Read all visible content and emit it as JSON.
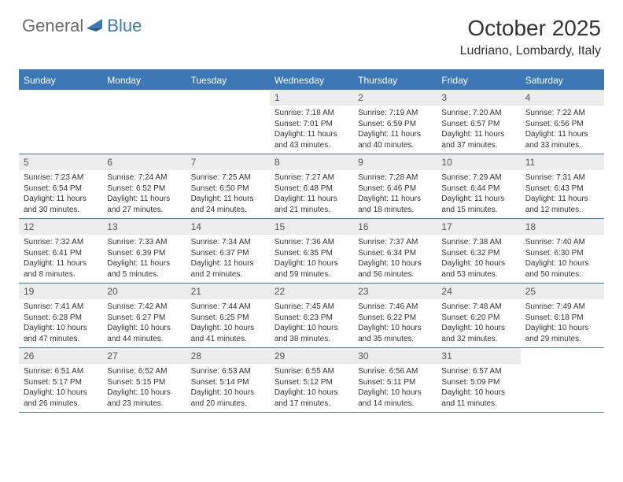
{
  "logo": {
    "text_general": "General",
    "text_blue": "Blue"
  },
  "title": "October 2025",
  "location": "Ludriano, Lombardy, Italy",
  "colors": {
    "header_bar": "#3b78b5",
    "daynum_bg": "#ececec",
    "text": "#333333",
    "logo_gray": "#6a6a6a",
    "logo_blue": "#3b78b5",
    "background": "#ffffff"
  },
  "weekdays": [
    "Sunday",
    "Monday",
    "Tuesday",
    "Wednesday",
    "Thursday",
    "Friday",
    "Saturday"
  ],
  "weeks": [
    [
      null,
      null,
      null,
      {
        "n": "1",
        "sunrise": "7:18 AM",
        "sunset": "7:01 PM",
        "day_h": 11,
        "day_m": 43
      },
      {
        "n": "2",
        "sunrise": "7:19 AM",
        "sunset": "6:59 PM",
        "day_h": 11,
        "day_m": 40
      },
      {
        "n": "3",
        "sunrise": "7:20 AM",
        "sunset": "6:57 PM",
        "day_h": 11,
        "day_m": 37
      },
      {
        "n": "4",
        "sunrise": "7:22 AM",
        "sunset": "6:56 PM",
        "day_h": 11,
        "day_m": 33
      }
    ],
    [
      {
        "n": "5",
        "sunrise": "7:23 AM",
        "sunset": "6:54 PM",
        "day_h": 11,
        "day_m": 30
      },
      {
        "n": "6",
        "sunrise": "7:24 AM",
        "sunset": "6:52 PM",
        "day_h": 11,
        "day_m": 27
      },
      {
        "n": "7",
        "sunrise": "7:25 AM",
        "sunset": "6:50 PM",
        "day_h": 11,
        "day_m": 24
      },
      {
        "n": "8",
        "sunrise": "7:27 AM",
        "sunset": "6:48 PM",
        "day_h": 11,
        "day_m": 21
      },
      {
        "n": "9",
        "sunrise": "7:28 AM",
        "sunset": "6:46 PM",
        "day_h": 11,
        "day_m": 18
      },
      {
        "n": "10",
        "sunrise": "7:29 AM",
        "sunset": "6:44 PM",
        "day_h": 11,
        "day_m": 15
      },
      {
        "n": "11",
        "sunrise": "7:31 AM",
        "sunset": "6:43 PM",
        "day_h": 11,
        "day_m": 12
      }
    ],
    [
      {
        "n": "12",
        "sunrise": "7:32 AM",
        "sunset": "6:41 PM",
        "day_h": 11,
        "day_m": 8
      },
      {
        "n": "13",
        "sunrise": "7:33 AM",
        "sunset": "6:39 PM",
        "day_h": 11,
        "day_m": 5
      },
      {
        "n": "14",
        "sunrise": "7:34 AM",
        "sunset": "6:37 PM",
        "day_h": 11,
        "day_m": 2
      },
      {
        "n": "15",
        "sunrise": "7:36 AM",
        "sunset": "6:35 PM",
        "day_h": 10,
        "day_m": 59
      },
      {
        "n": "16",
        "sunrise": "7:37 AM",
        "sunset": "6:34 PM",
        "day_h": 10,
        "day_m": 56
      },
      {
        "n": "17",
        "sunrise": "7:38 AM",
        "sunset": "6:32 PM",
        "day_h": 10,
        "day_m": 53
      },
      {
        "n": "18",
        "sunrise": "7:40 AM",
        "sunset": "6:30 PM",
        "day_h": 10,
        "day_m": 50
      }
    ],
    [
      {
        "n": "19",
        "sunrise": "7:41 AM",
        "sunset": "6:28 PM",
        "day_h": 10,
        "day_m": 47
      },
      {
        "n": "20",
        "sunrise": "7:42 AM",
        "sunset": "6:27 PM",
        "day_h": 10,
        "day_m": 44
      },
      {
        "n": "21",
        "sunrise": "7:44 AM",
        "sunset": "6:25 PM",
        "day_h": 10,
        "day_m": 41
      },
      {
        "n": "22",
        "sunrise": "7:45 AM",
        "sunset": "6:23 PM",
        "day_h": 10,
        "day_m": 38
      },
      {
        "n": "23",
        "sunrise": "7:46 AM",
        "sunset": "6:22 PM",
        "day_h": 10,
        "day_m": 35
      },
      {
        "n": "24",
        "sunrise": "7:48 AM",
        "sunset": "6:20 PM",
        "day_h": 10,
        "day_m": 32
      },
      {
        "n": "25",
        "sunrise": "7:49 AM",
        "sunset": "6:18 PM",
        "day_h": 10,
        "day_m": 29
      }
    ],
    [
      {
        "n": "26",
        "sunrise": "6:51 AM",
        "sunset": "5:17 PM",
        "day_h": 10,
        "day_m": 26
      },
      {
        "n": "27",
        "sunrise": "6:52 AM",
        "sunset": "5:15 PM",
        "day_h": 10,
        "day_m": 23
      },
      {
        "n": "28",
        "sunrise": "6:53 AM",
        "sunset": "5:14 PM",
        "day_h": 10,
        "day_m": 20
      },
      {
        "n": "29",
        "sunrise": "6:55 AM",
        "sunset": "5:12 PM",
        "day_h": 10,
        "day_m": 17
      },
      {
        "n": "30",
        "sunrise": "6:56 AM",
        "sunset": "5:11 PM",
        "day_h": 10,
        "day_m": 14
      },
      {
        "n": "31",
        "sunrise": "6:57 AM",
        "sunset": "5:09 PM",
        "day_h": 10,
        "day_m": 11
      },
      null
    ]
  ],
  "labels": {
    "sunrise": "Sunrise:",
    "sunset": "Sunset:",
    "daylight_prefix": "Daylight:",
    "hours_word": "hours",
    "and_word": "and",
    "minutes_word": "minutes."
  }
}
